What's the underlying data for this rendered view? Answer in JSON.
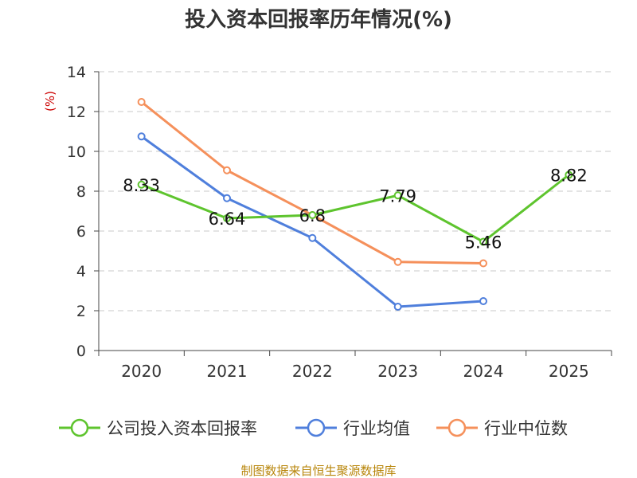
{
  "chart_data": {
    "type": "line",
    "title": "投入资本回报率历年情况(%)",
    "ylabel": "(%)",
    "xlabel": "",
    "categories": [
      "2020",
      "2021",
      "2022",
      "2023",
      "2024",
      "2025"
    ],
    "ylim": [
      0,
      14
    ],
    "yticks": [
      0,
      2,
      4,
      6,
      8,
      10,
      12,
      14
    ],
    "grid": true,
    "legend_position": "bottom",
    "series": [
      {
        "name": "公司投入资本回报率",
        "color": "#5ec42e",
        "show_labels": true,
        "values": [
          8.33,
          6.64,
          6.8,
          7.79,
          5.46,
          8.82
        ],
        "labels": [
          "8.33",
          "6.64",
          "6.8",
          "7.79",
          "5.46",
          "8.82"
        ]
      },
      {
        "name": "行业均值",
        "color": "#4f7fdc",
        "show_labels": false,
        "values": [
          10.75,
          7.65,
          5.65,
          2.2,
          2.48,
          null
        ]
      },
      {
        "name": "行业中位数",
        "color": "#f5905b",
        "show_labels": false,
        "values": [
          12.48,
          9.05,
          6.8,
          4.45,
          4.38,
          null
        ]
      }
    ],
    "source": "制图数据来自恒生聚源数据库"
  }
}
